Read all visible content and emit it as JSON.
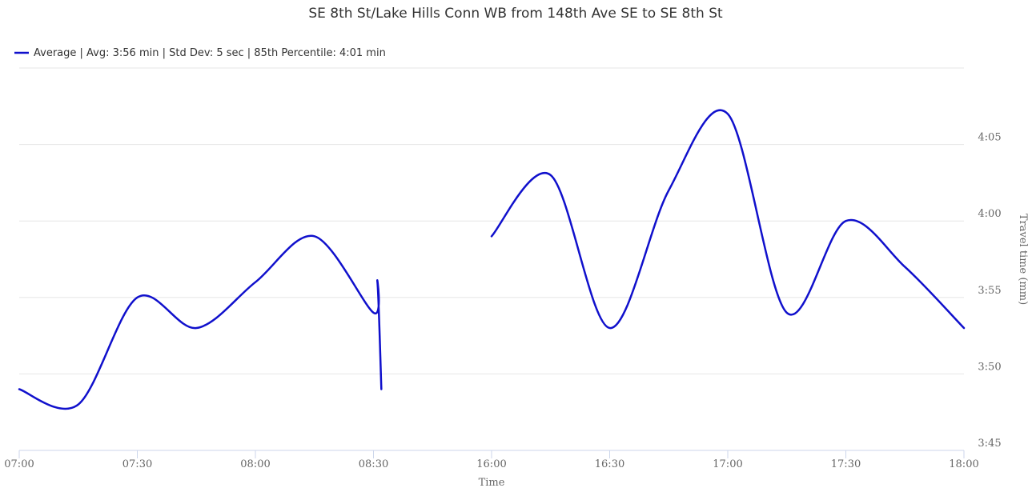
{
  "chart_data": {
    "type": "line",
    "title": "SE 8th St/Lake Hills Conn WB from 148th Ave SE to SE 8th St",
    "xlabel": "Time",
    "ylabel": "Travel time (mm)",
    "x_ticks": [
      "07:00",
      "07:30",
      "08:00",
      "08:30",
      "16:00",
      "16:30",
      "17:00",
      "17:30",
      "18:00"
    ],
    "y_ticks": [
      "3:45",
      "3:50",
      "3:55",
      "4:00",
      "4:05"
    ],
    "ylim": [
      "3:45",
      "4:10"
    ],
    "grid": true,
    "legend_position": "top-left",
    "series": [
      {
        "name": "Average | Avg: 3:56 min | Std Dev: 5 sec | 85th Percentile: 4:01 min",
        "color": "#1010cc",
        "segments": [
          {
            "x": [
              "07:00",
              "07:15",
              "07:30",
              "07:45",
              "08:00",
              "08:15",
              "08:30",
              "08:45",
              "09:00"
            ],
            "y": [
              "3:49",
              "3:48",
              "3:55",
              "3:53",
              "3:56",
              "3:59",
              "3:54",
              "3:56",
              "3:49"
            ]
          },
          {
            "x": [
              "16:00",
              "16:15",
              "16:30",
              "16:45",
              "17:00",
              "17:15",
              "17:30",
              "17:45",
              "18:00"
            ],
            "y": [
              "3:59",
              "4:03",
              "3:53",
              "4:02",
              "4:07",
              "3:54",
              "4:00",
              "3:57",
              "3:53"
            ]
          }
        ]
      }
    ]
  }
}
